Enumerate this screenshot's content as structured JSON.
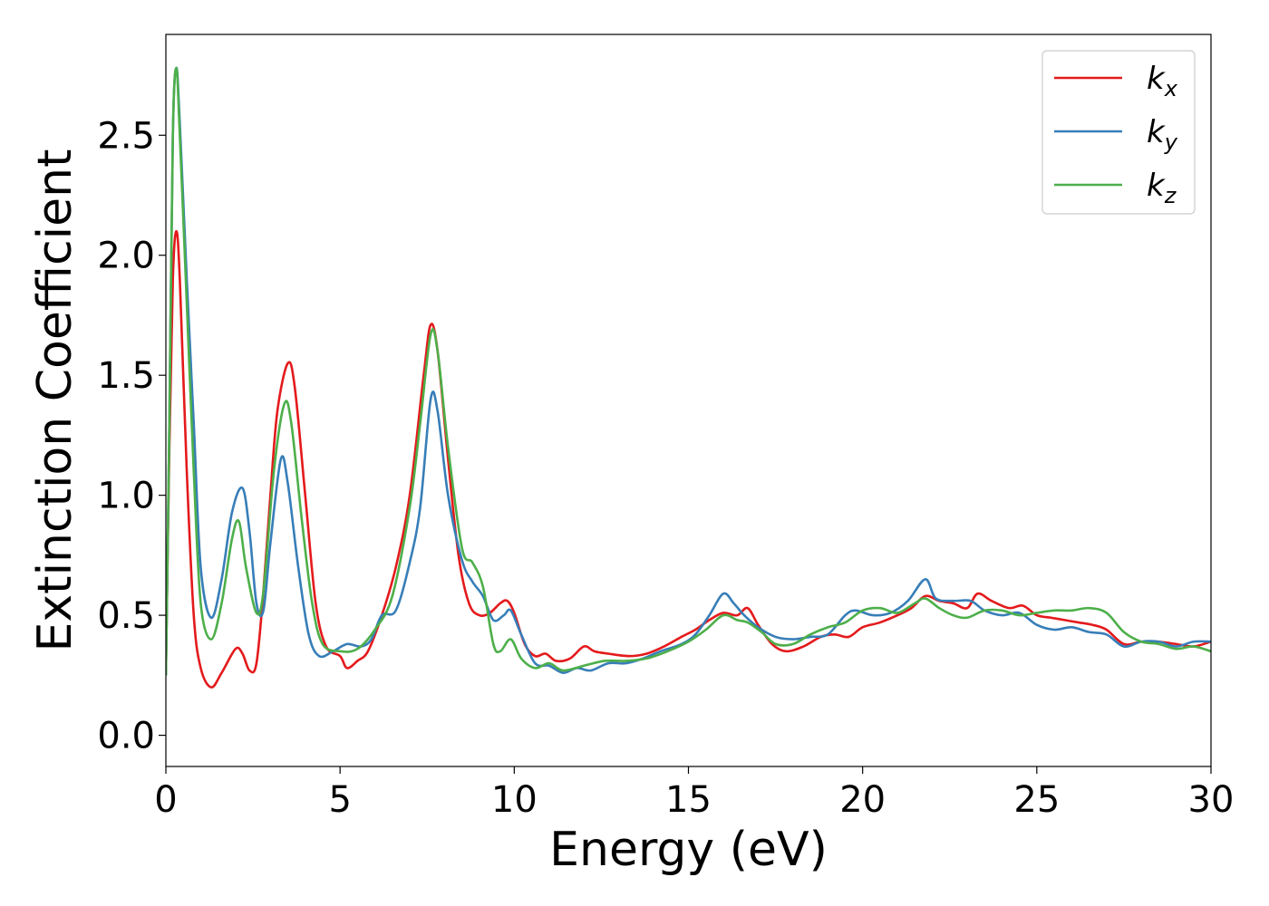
{
  "chart_data": {
    "type": "line",
    "title": "",
    "xlabel": "Energy (eV)",
    "ylabel": "Extinction Coefficient",
    "xlim": [
      0,
      30
    ],
    "ylim": [
      -0.13,
      2.92
    ],
    "xticks": [
      0,
      5,
      10,
      15,
      20,
      25,
      30
    ],
    "xtick_labels": [
      "0",
      "5",
      "10",
      "15",
      "20",
      "25",
      "30"
    ],
    "yticks": [
      0.0,
      0.5,
      1.0,
      1.5,
      2.0,
      2.5
    ],
    "ytick_labels": [
      "0.0",
      "0.5",
      "1.0",
      "1.5",
      "2.0",
      "2.5"
    ],
    "grid": false,
    "legend_position": "top-right",
    "series": [
      {
        "name": "k_x",
        "label_base": "k",
        "label_sub": "x",
        "color": "#e41a1c",
        "points": [
          [
            0,
            0.25
          ],
          [
            0.1,
            1.2
          ],
          [
            0.2,
            1.9
          ],
          [
            0.3,
            2.1
          ],
          [
            0.4,
            1.9
          ],
          [
            0.6,
            1.1
          ],
          [
            0.8,
            0.5
          ],
          [
            1.0,
            0.28
          ],
          [
            1.3,
            0.2
          ],
          [
            1.6,
            0.26
          ],
          [
            2.0,
            0.36
          ],
          [
            2.2,
            0.34
          ],
          [
            2.4,
            0.27
          ],
          [
            2.6,
            0.3
          ],
          [
            2.8,
            0.6
          ],
          [
            3.0,
            1.0
          ],
          [
            3.2,
            1.35
          ],
          [
            3.5,
            1.55
          ],
          [
            3.7,
            1.45
          ],
          [
            4.0,
            1.0
          ],
          [
            4.3,
            0.55
          ],
          [
            4.6,
            0.37
          ],
          [
            5.0,
            0.33
          ],
          [
            5.2,
            0.28
          ],
          [
            5.5,
            0.31
          ],
          [
            5.8,
            0.35
          ],
          [
            6.2,
            0.5
          ],
          [
            6.6,
            0.7
          ],
          [
            7.0,
            1.0
          ],
          [
            7.4,
            1.5
          ],
          [
            7.6,
            1.71
          ],
          [
            7.8,
            1.6
          ],
          [
            8.1,
            1.15
          ],
          [
            8.4,
            0.75
          ],
          [
            8.7,
            0.55
          ],
          [
            9.0,
            0.5
          ],
          [
            9.3,
            0.51
          ],
          [
            9.6,
            0.55
          ],
          [
            9.8,
            0.56
          ],
          [
            10.0,
            0.51
          ],
          [
            10.3,
            0.38
          ],
          [
            10.6,
            0.33
          ],
          [
            10.9,
            0.34
          ],
          [
            11.2,
            0.31
          ],
          [
            11.6,
            0.32
          ],
          [
            12.0,
            0.37
          ],
          [
            12.3,
            0.35
          ],
          [
            12.7,
            0.34
          ],
          [
            13.3,
            0.33
          ],
          [
            13.8,
            0.34
          ],
          [
            14.3,
            0.37
          ],
          [
            14.8,
            0.41
          ],
          [
            15.2,
            0.44
          ],
          [
            15.6,
            0.48
          ],
          [
            16.0,
            0.51
          ],
          [
            16.4,
            0.5
          ],
          [
            16.7,
            0.53
          ],
          [
            17.0,
            0.46
          ],
          [
            17.4,
            0.38
          ],
          [
            17.8,
            0.35
          ],
          [
            18.3,
            0.37
          ],
          [
            18.8,
            0.41
          ],
          [
            19.2,
            0.42
          ],
          [
            19.6,
            0.41
          ],
          [
            20.0,
            0.45
          ],
          [
            20.5,
            0.47
          ],
          [
            21.0,
            0.5
          ],
          [
            21.4,
            0.53
          ],
          [
            21.8,
            0.58
          ],
          [
            22.2,
            0.56
          ],
          [
            22.6,
            0.55
          ],
          [
            23.0,
            0.53
          ],
          [
            23.3,
            0.59
          ],
          [
            23.7,
            0.56
          ],
          [
            24.2,
            0.53
          ],
          [
            24.6,
            0.54
          ],
          [
            25.0,
            0.5
          ],
          [
            25.4,
            0.49
          ],
          [
            25.8,
            0.48
          ],
          [
            26.2,
            0.47
          ],
          [
            26.6,
            0.46
          ],
          [
            27.0,
            0.44
          ],
          [
            27.5,
            0.38
          ],
          [
            28.0,
            0.39
          ],
          [
            28.5,
            0.39
          ],
          [
            29.0,
            0.38
          ],
          [
            29.5,
            0.37
          ],
          [
            30.0,
            0.39
          ]
        ]
      },
      {
        "name": "k_y",
        "label_base": "k",
        "label_sub": "y",
        "color": "#377eb8",
        "points": [
          [
            0,
            0.25
          ],
          [
            0.1,
            1.3
          ],
          [
            0.2,
            2.5
          ],
          [
            0.3,
            2.78
          ],
          [
            0.4,
            2.55
          ],
          [
            0.6,
            1.9
          ],
          [
            0.8,
            1.3
          ],
          [
            1.0,
            0.7
          ],
          [
            1.3,
            0.49
          ],
          [
            1.6,
            0.65
          ],
          [
            1.9,
            0.93
          ],
          [
            2.2,
            1.03
          ],
          [
            2.4,
            0.85
          ],
          [
            2.6,
            0.55
          ],
          [
            2.8,
            0.52
          ],
          [
            3.0,
            0.8
          ],
          [
            3.3,
            1.15
          ],
          [
            3.5,
            1.05
          ],
          [
            3.8,
            0.7
          ],
          [
            4.1,
            0.42
          ],
          [
            4.4,
            0.33
          ],
          [
            4.8,
            0.35
          ],
          [
            5.2,
            0.38
          ],
          [
            5.6,
            0.37
          ],
          [
            5.9,
            0.4
          ],
          [
            6.2,
            0.5
          ],
          [
            6.6,
            0.52
          ],
          [
            7.0,
            0.72
          ],
          [
            7.3,
            0.95
          ],
          [
            7.6,
            1.4
          ],
          [
            7.8,
            1.35
          ],
          [
            8.1,
            1.0
          ],
          [
            8.5,
            0.73
          ],
          [
            8.8,
            0.64
          ],
          [
            9.1,
            0.58
          ],
          [
            9.4,
            0.48
          ],
          [
            9.7,
            0.5
          ],
          [
            9.9,
            0.52
          ],
          [
            10.2,
            0.42
          ],
          [
            10.6,
            0.3
          ],
          [
            11.0,
            0.29
          ],
          [
            11.4,
            0.26
          ],
          [
            11.8,
            0.28
          ],
          [
            12.2,
            0.27
          ],
          [
            12.7,
            0.3
          ],
          [
            13.2,
            0.3
          ],
          [
            13.7,
            0.32
          ],
          [
            14.2,
            0.35
          ],
          [
            14.8,
            0.38
          ],
          [
            15.2,
            0.42
          ],
          [
            15.6,
            0.5
          ],
          [
            16.0,
            0.59
          ],
          [
            16.3,
            0.55
          ],
          [
            16.6,
            0.5
          ],
          [
            17.0,
            0.45
          ],
          [
            17.5,
            0.41
          ],
          [
            18.0,
            0.4
          ],
          [
            18.5,
            0.41
          ],
          [
            19.0,
            0.42
          ],
          [
            19.5,
            0.5
          ],
          [
            19.8,
            0.52
          ],
          [
            20.3,
            0.5
          ],
          [
            20.8,
            0.51
          ],
          [
            21.3,
            0.56
          ],
          [
            21.8,
            0.65
          ],
          [
            22.1,
            0.57
          ],
          [
            22.6,
            0.56
          ],
          [
            23.1,
            0.56
          ],
          [
            23.5,
            0.52
          ],
          [
            24.0,
            0.5
          ],
          [
            24.5,
            0.51
          ],
          [
            25.0,
            0.46
          ],
          [
            25.5,
            0.44
          ],
          [
            26.0,
            0.45
          ],
          [
            26.5,
            0.43
          ],
          [
            27.0,
            0.42
          ],
          [
            27.5,
            0.37
          ],
          [
            28.0,
            0.39
          ],
          [
            28.5,
            0.39
          ],
          [
            29.0,
            0.37
          ],
          [
            29.5,
            0.39
          ],
          [
            30.0,
            0.39
          ]
        ]
      },
      {
        "name": "k_z",
        "label_base": "k",
        "label_sub": "z",
        "color": "#4daf4a",
        "points": [
          [
            0,
            0.25
          ],
          [
            0.1,
            1.3
          ],
          [
            0.2,
            2.5
          ],
          [
            0.3,
            2.78
          ],
          [
            0.4,
            2.5
          ],
          [
            0.6,
            1.8
          ],
          [
            0.8,
            1.1
          ],
          [
            1.0,
            0.55
          ],
          [
            1.3,
            0.4
          ],
          [
            1.6,
            0.55
          ],
          [
            1.9,
            0.82
          ],
          [
            2.1,
            0.89
          ],
          [
            2.3,
            0.7
          ],
          [
            2.6,
            0.51
          ],
          [
            2.8,
            0.6
          ],
          [
            3.1,
            1.1
          ],
          [
            3.4,
            1.38
          ],
          [
            3.6,
            1.3
          ],
          [
            3.9,
            0.9
          ],
          [
            4.2,
            0.55
          ],
          [
            4.5,
            0.38
          ],
          [
            5.0,
            0.35
          ],
          [
            5.5,
            0.36
          ],
          [
            6.0,
            0.44
          ],
          [
            6.5,
            0.58
          ],
          [
            7.0,
            0.95
          ],
          [
            7.3,
            1.3
          ],
          [
            7.6,
            1.67
          ],
          [
            7.8,
            1.6
          ],
          [
            8.1,
            1.2
          ],
          [
            8.5,
            0.78
          ],
          [
            8.8,
            0.72
          ],
          [
            9.1,
            0.62
          ],
          [
            9.4,
            0.38
          ],
          [
            9.6,
            0.35
          ],
          [
            9.9,
            0.4
          ],
          [
            10.2,
            0.32
          ],
          [
            10.6,
            0.28
          ],
          [
            11.0,
            0.3
          ],
          [
            11.4,
            0.27
          ],
          [
            12.0,
            0.29
          ],
          [
            12.6,
            0.31
          ],
          [
            13.2,
            0.31
          ],
          [
            13.8,
            0.32
          ],
          [
            14.4,
            0.35
          ],
          [
            15.0,
            0.39
          ],
          [
            15.5,
            0.44
          ],
          [
            16.0,
            0.5
          ],
          [
            16.4,
            0.48
          ],
          [
            16.7,
            0.47
          ],
          [
            17.1,
            0.43
          ],
          [
            17.5,
            0.38
          ],
          [
            18.0,
            0.38
          ],
          [
            18.5,
            0.42
          ],
          [
            19.0,
            0.45
          ],
          [
            19.5,
            0.47
          ],
          [
            20.0,
            0.52
          ],
          [
            20.5,
            0.53
          ],
          [
            21.0,
            0.51
          ],
          [
            21.5,
            0.55
          ],
          [
            21.8,
            0.57
          ],
          [
            22.2,
            0.53
          ],
          [
            22.6,
            0.5
          ],
          [
            23.0,
            0.49
          ],
          [
            23.5,
            0.52
          ],
          [
            24.0,
            0.52
          ],
          [
            24.5,
            0.5
          ],
          [
            25.0,
            0.51
          ],
          [
            25.5,
            0.52
          ],
          [
            26.0,
            0.52
          ],
          [
            26.5,
            0.53
          ],
          [
            27.0,
            0.51
          ],
          [
            27.5,
            0.43
          ],
          [
            28.0,
            0.39
          ],
          [
            28.5,
            0.38
          ],
          [
            29.0,
            0.36
          ],
          [
            29.5,
            0.37
          ],
          [
            30.0,
            0.35
          ]
        ]
      }
    ]
  }
}
